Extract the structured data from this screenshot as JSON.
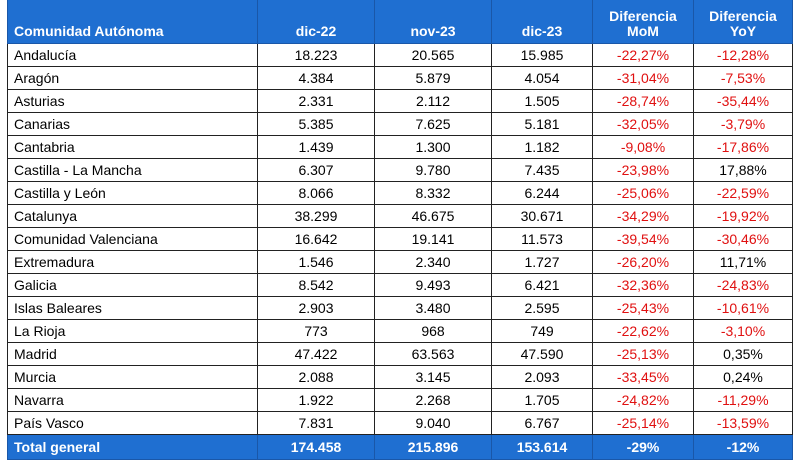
{
  "table": {
    "headers": [
      {
        "lines": [
          "Comunidad Autónoma"
        ]
      },
      {
        "lines": [
          "dic-22"
        ]
      },
      {
        "lines": [
          "nov-23"
        ]
      },
      {
        "lines": [
          "dic-23"
        ]
      },
      {
        "lines": [
          "Diferencia",
          "MoM"
        ]
      },
      {
        "lines": [
          "Diferencia",
          "YoY"
        ]
      }
    ],
    "rows": [
      {
        "name": "Andalucía",
        "dic22": "18.223",
        "nov23": "20.565",
        "dic23": "15.985",
        "mom": "-22,27%",
        "yoy": "-12,28%"
      },
      {
        "name": "Aragón",
        "dic22": "4.384",
        "nov23": "5.879",
        "dic23": "4.054",
        "mom": "-31,04%",
        "yoy": "-7,53%"
      },
      {
        "name": "Asturias",
        "dic22": "2.331",
        "nov23": "2.112",
        "dic23": "1.505",
        "mom": "-28,74%",
        "yoy": "-35,44%"
      },
      {
        "name": "Canarias",
        "dic22": "5.385",
        "nov23": "7.625",
        "dic23": "5.181",
        "mom": "-32,05%",
        "yoy": "-3,79%"
      },
      {
        "name": "Cantabria",
        "dic22": "1.439",
        "nov23": "1.300",
        "dic23": "1.182",
        "mom": "-9,08%",
        "yoy": "-17,86%"
      },
      {
        "name": "Castilla - La Mancha",
        "dic22": "6.307",
        "nov23": "9.780",
        "dic23": "7.435",
        "mom": "-23,98%",
        "yoy": "17,88%"
      },
      {
        "name": "Castilla y León",
        "dic22": "8.066",
        "nov23": "8.332",
        "dic23": "6.244",
        "mom": "-25,06%",
        "yoy": "-22,59%"
      },
      {
        "name": "Catalunya",
        "dic22": "38.299",
        "nov23": "46.675",
        "dic23": "30.671",
        "mom": "-34,29%",
        "yoy": "-19,92%"
      },
      {
        "name": "Comunidad Valenciana",
        "dic22": "16.642",
        "nov23": "19.141",
        "dic23": "11.573",
        "mom": "-39,54%",
        "yoy": "-30,46%"
      },
      {
        "name": "Extremadura",
        "dic22": "1.546",
        "nov23": "2.340",
        "dic23": "1.727",
        "mom": "-26,20%",
        "yoy": "11,71%"
      },
      {
        "name": "Galicia",
        "dic22": "8.542",
        "nov23": "9.493",
        "dic23": "6.421",
        "mom": "-32,36%",
        "yoy": "-24,83%"
      },
      {
        "name": "Islas Baleares",
        "dic22": "2.903",
        "nov23": "3.480",
        "dic23": "2.595",
        "mom": "-25,43%",
        "yoy": "-10,61%"
      },
      {
        "name": "La Rioja",
        "dic22": "773",
        "nov23": "968",
        "dic23": "749",
        "mom": "-22,62%",
        "yoy": "-3,10%"
      },
      {
        "name": "Madrid",
        "dic22": "47.422",
        "nov23": "63.563",
        "dic23": "47.590",
        "mom": "-25,13%",
        "yoy": "0,35%"
      },
      {
        "name": "Murcia",
        "dic22": "2.088",
        "nov23": "3.145",
        "dic23": "2.093",
        "mom": "-33,45%",
        "yoy": "0,24%"
      },
      {
        "name": "Navarra",
        "dic22": "1.922",
        "nov23": "2.268",
        "dic23": "1.705",
        "mom": "-24,82%",
        "yoy": "-11,29%"
      },
      {
        "name": "País Vasco",
        "dic22": "7.831",
        "nov23": "9.040",
        "dic23": "6.767",
        "mom": "-25,14%",
        "yoy": "-13,59%"
      }
    ],
    "total": {
      "name": "Total general",
      "dic22": "174.458",
      "nov23": "215.896",
      "dic23": "153.614",
      "mom": "-29%",
      "yoy": "-12%"
    }
  },
  "colors": {
    "header_bg": "#1f6fd1",
    "header_text": "#ffffff",
    "negative": "#e01010",
    "positive": "#000000"
  }
}
